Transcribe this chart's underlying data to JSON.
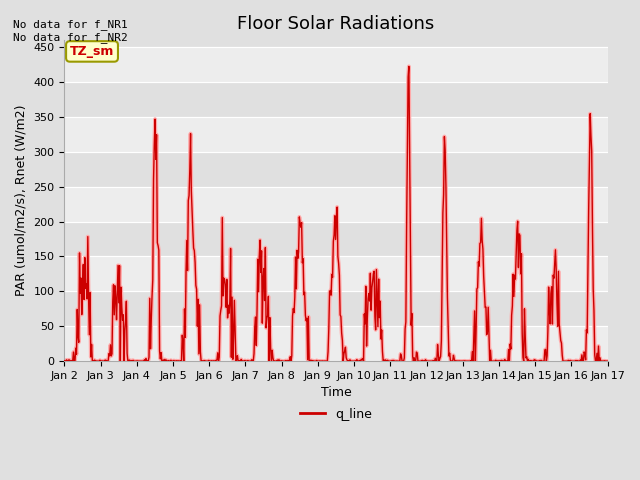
{
  "title": "Floor Solar Radiations",
  "xlabel": "Time",
  "ylabel": "PAR (umol/m2/s), Rnet (W/m2)",
  "legend_label": "q_line",
  "annotation_text": "No data for f_NR1\nNo data for f_NR2",
  "legend_box_text": "TZ_sm",
  "ylim": [
    0,
    460
  ],
  "line_color": "#cc0000",
  "line_color_light": "#ffaaaa",
  "yticks": [
    0,
    50,
    100,
    150,
    200,
    250,
    300,
    350,
    400,
    450
  ],
  "xtick_labels": [
    "Jan 2",
    "Jan 3",
    "Jan 4",
    "Jan 5",
    "Jan 6",
    "Jan 7",
    "Jan 8",
    "Jan 9",
    "Jan 10",
    "Jan 11",
    "Jan 12",
    "Jan 13",
    "Jan 14",
    "Jan 15",
    "Jan 16",
    "Jan 17"
  ],
  "num_days": 15,
  "points_per_day": 48,
  "font_size_title": 13,
  "font_size_axis": 9,
  "font_size_tick": 8
}
